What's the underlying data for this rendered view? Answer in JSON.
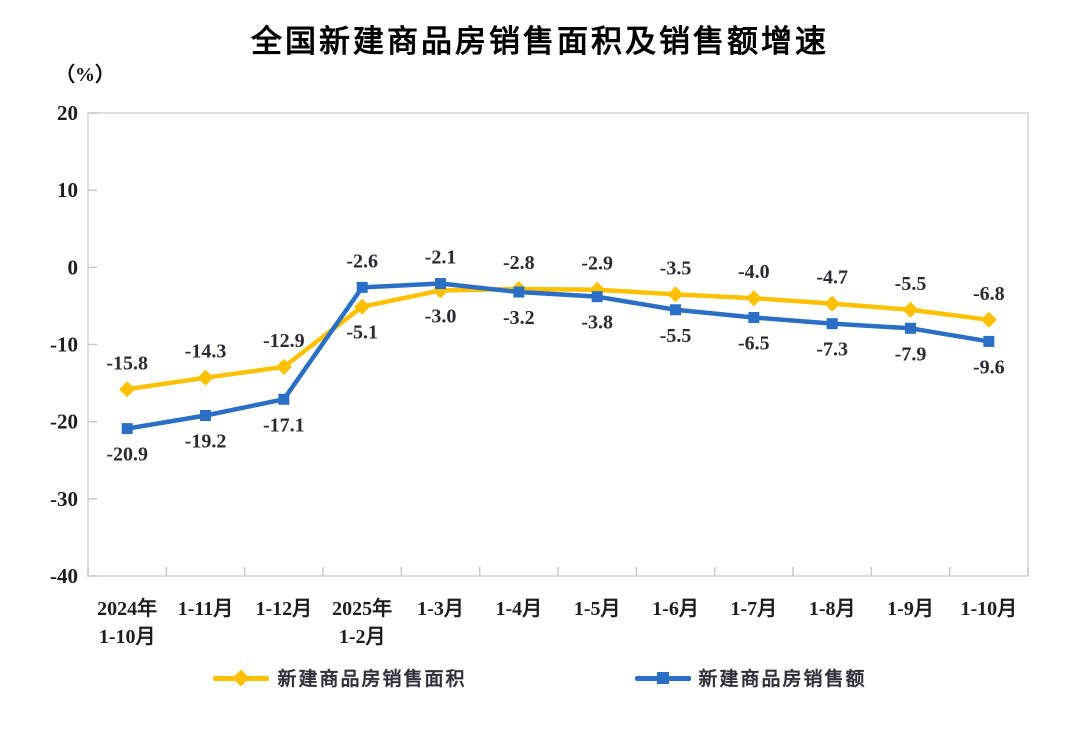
{
  "title": "全国新建商品房销售面积及销售额增速",
  "unit_label": "（%）",
  "chart_data": {
    "type": "line",
    "title": "全国新建商品房销售面积及销售额增速",
    "ylabel": "（%）",
    "xlabel": "",
    "ylim": [
      -40,
      20
    ],
    "yticks": [
      20,
      10,
      0,
      -10,
      -20,
      -30,
      -40
    ],
    "grid": false,
    "legend_position": "bottom",
    "categories": [
      "2024年\n1-10月",
      "1-11月",
      "1-12月",
      "2025年\n1-2月",
      "1-3月",
      "1-4月",
      "1-5月",
      "1-6月",
      "1-7月",
      "1-8月",
      "1-9月",
      "1-10月"
    ],
    "series": [
      {
        "name": "新建商品房销售面积",
        "color": "#FFC000",
        "marker": "diamond",
        "values": [
          -15.8,
          -14.3,
          -12.9,
          -5.1,
          -3.0,
          -2.8,
          -2.9,
          -3.5,
          -4.0,
          -4.7,
          -5.5,
          -6.8
        ],
        "label_side": [
          "above",
          "above",
          "above",
          "below",
          "below",
          "above",
          "above",
          "above",
          "above",
          "above",
          "above",
          "above"
        ]
      },
      {
        "name": "新建商品房销售额",
        "color": "#2A6FC5",
        "marker": "square",
        "values": [
          -20.9,
          -19.2,
          -17.1,
          -2.6,
          -2.1,
          -3.2,
          -3.8,
          -5.5,
          -6.5,
          -7.3,
          -7.9,
          -9.6
        ],
        "label_side": [
          "below",
          "below",
          "below",
          "above",
          "above",
          "below",
          "below",
          "below",
          "below",
          "below",
          "below",
          "below"
        ]
      }
    ]
  },
  "colors": {
    "axis": "#d4d4d4",
    "tick": "#c9c9c9",
    "text": "#1d1d1f"
  }
}
